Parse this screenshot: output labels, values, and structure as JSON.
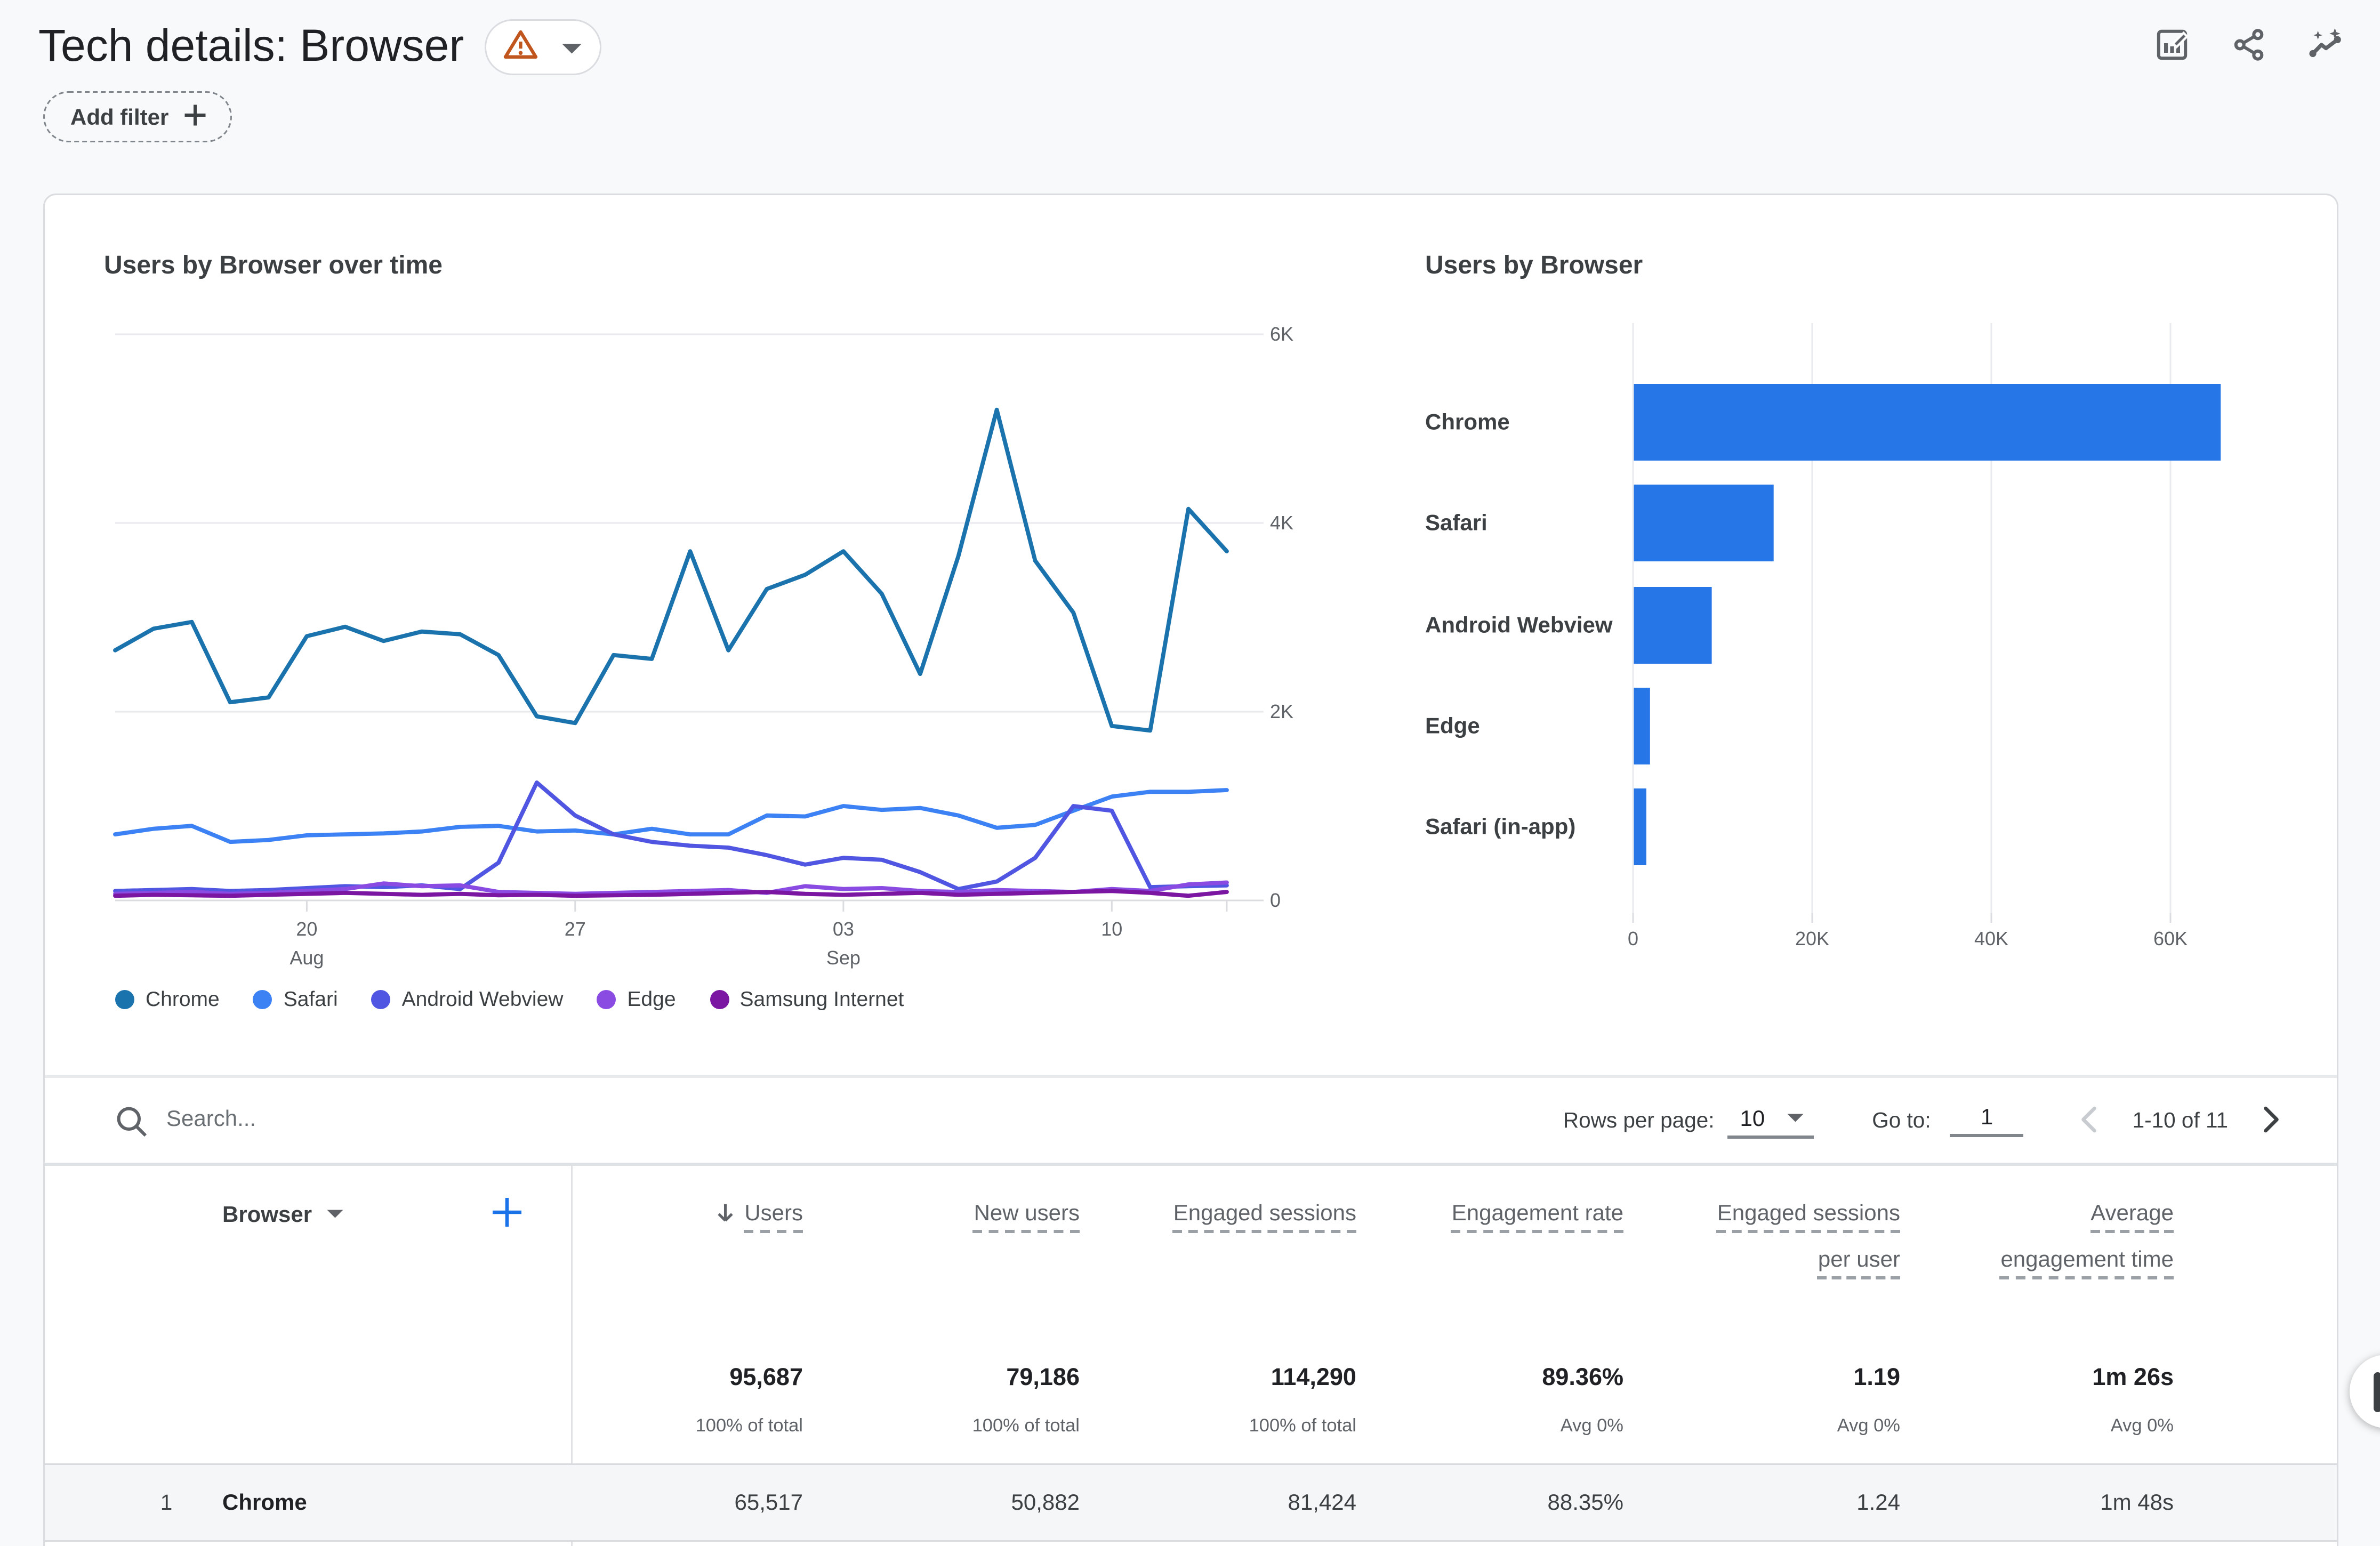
{
  "header": {
    "title": "Tech details: Browser",
    "warning_badge": {
      "icon": "warning-triangle",
      "color": "#c1551e"
    },
    "actions": [
      "customize-report",
      "share",
      "insights"
    ]
  },
  "filter_bar": {
    "add_filter_label": "Add filter"
  },
  "chart_data": [
    {
      "type": "line",
      "title": "Users by Browser over time",
      "ylabel": "Users",
      "ylim": [
        0,
        6000
      ],
      "ytick_labels": [
        "6K",
        "4K",
        "2K",
        "0"
      ],
      "grid": "horizontal",
      "legend_position": "bottom-left",
      "x_dates": [
        "Aug 15",
        "Aug 16",
        "Aug 17",
        "Aug 18",
        "Aug 19",
        "Aug 20",
        "Aug 21",
        "Aug 22",
        "Aug 23",
        "Aug 24",
        "Aug 25",
        "Aug 26",
        "Aug 27",
        "Aug 28",
        "Aug 29",
        "Aug 30",
        "Aug 31",
        "Sep 1",
        "Sep 2",
        "Sep 3",
        "Sep 4",
        "Sep 5",
        "Sep 6",
        "Sep 7",
        "Sep 8",
        "Sep 9",
        "Sep 10",
        "Sep 11",
        "Sep 12",
        "Sep 13"
      ],
      "xticks": [
        {
          "index": 5,
          "line1": "20",
          "line2": "Aug"
        },
        {
          "index": 12,
          "line1": "27",
          "line2": ""
        },
        {
          "index": 19,
          "line1": "03",
          "line2": "Sep"
        },
        {
          "index": 26,
          "line1": "10",
          "line2": ""
        }
      ],
      "series": [
        {
          "name": "Chrome",
          "color": "#1b73ae",
          "values": [
            2650,
            2880,
            2950,
            2100,
            2150,
            2800,
            2900,
            2750,
            2850,
            2820,
            2600,
            1950,
            1880,
            2600,
            2560,
            3700,
            2650,
            3300,
            3450,
            3700,
            3250,
            2400,
            3650,
            5200,
            3600,
            3050,
            1850,
            1800,
            4150,
            3700
          ]
        },
        {
          "name": "Safari",
          "color": "#3d82f4",
          "values": [
            700,
            760,
            790,
            620,
            640,
            690,
            700,
            710,
            730,
            780,
            790,
            730,
            740,
            700,
            760,
            700,
            700,
            900,
            890,
            1000,
            960,
            980,
            900,
            770,
            800,
            950,
            1100,
            1150,
            1150,
            1170
          ]
        },
        {
          "name": "Android Webview",
          "color": "#5156e2",
          "values": [
            100,
            110,
            120,
            100,
            110,
            130,
            150,
            140,
            160,
            120,
            400,
            1250,
            900,
            700,
            620,
            580,
            560,
            480,
            380,
            450,
            430,
            300,
            120,
            200,
            450,
            1000,
            950,
            140,
            150,
            160
          ]
        },
        {
          "name": "Edge",
          "color": "#8a4be2",
          "values": [
            70,
            80,
            90,
            70,
            80,
            100,
            120,
            180,
            150,
            160,
            90,
            80,
            70,
            80,
            90,
            100,
            110,
            80,
            150,
            120,
            130,
            100,
            90,
            110,
            100,
            90,
            120,
            100,
            170,
            190
          ]
        },
        {
          "name": "Samsung Internet",
          "color": "#7b16a2",
          "values": [
            50,
            60,
            55,
            50,
            60,
            70,
            80,
            70,
            60,
            70,
            55,
            60,
            50,
            55,
            60,
            70,
            80,
            90,
            70,
            60,
            70,
            80,
            60,
            70,
            80,
            90,
            100,
            80,
            50,
            90
          ]
        }
      ]
    },
    {
      "type": "bar",
      "title": "Users by Browser",
      "orientation": "horizontal",
      "categories": [
        "Chrome",
        "Safari",
        "Android Webview",
        "Edge",
        "Safari (in-app)"
      ],
      "values": [
        65517,
        15600,
        8700,
        1800,
        1400
      ],
      "bar_color": "#2776e8",
      "xtick_labels": [
        "0",
        "20K",
        "40K",
        "60K"
      ],
      "xtick_values": [
        0,
        20000,
        40000,
        60000
      ],
      "xlim": [
        0,
        64300
      ]
    }
  ],
  "table": {
    "search_placeholder": "Search...",
    "dimension_header": "Browser",
    "column_headers": [
      "Users",
      "New users",
      "Engaged sessions",
      "Engagement rate",
      "Engaged sessions per user",
      "Average engagement time"
    ],
    "sorted_column": "Users",
    "totals": {
      "values": [
        "95,687",
        "79,186",
        "114,290",
        "89.36%",
        "1.19",
        "1m 26s"
      ],
      "sub_labels": [
        "100% of total",
        "100% of total",
        "100% of total",
        "Avg 0%",
        "Avg 0%",
        "Avg 0%"
      ]
    },
    "rows": [
      {
        "index": "1",
        "dimension": "Chrome",
        "values": [
          "65,517",
          "50,882",
          "81,424",
          "88.35%",
          "1.24",
          "1m 48s"
        ]
      }
    ]
  },
  "pagination": {
    "rows_per_page_label": "Rows per page:",
    "rows_per_page_value": "10",
    "go_to_label": "Go to:",
    "go_to_value": "1",
    "range_label": "1-10 of 11"
  }
}
